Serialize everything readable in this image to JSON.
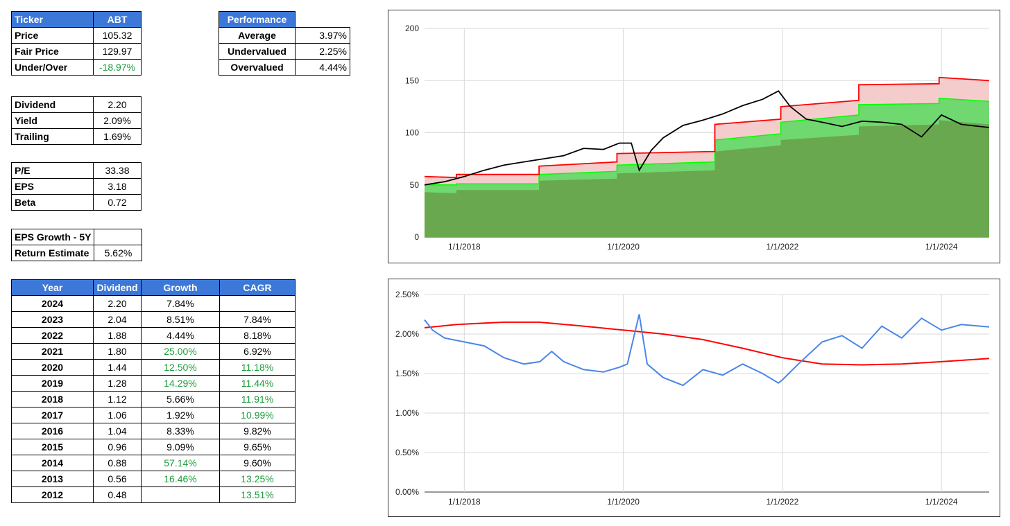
{
  "ticker_table": {
    "header_label": "Ticker",
    "header_value": "ABT",
    "rows": [
      {
        "label": "Price",
        "value": "105.32",
        "green": false
      },
      {
        "label": "Fair Price",
        "value": "129.97",
        "green": false
      },
      {
        "label": "Under/Over",
        "value": "-18.97%",
        "green": true
      }
    ]
  },
  "performance_table": {
    "header_label": "Performance",
    "rows": [
      {
        "label": "Average",
        "value": "3.97%"
      },
      {
        "label": "Undervalued",
        "value": "2.25%"
      },
      {
        "label": "Overvalued",
        "value": "4.44%"
      }
    ]
  },
  "dividend_table": {
    "rows": [
      {
        "label": "Dividend",
        "value": "2.20"
      },
      {
        "label": "Yield",
        "value": "2.09%"
      },
      {
        "label": "Trailing",
        "value": "1.69%"
      }
    ]
  },
  "valuation_table": {
    "rows": [
      {
        "label": "P/E",
        "value": "33.38"
      },
      {
        "label": "EPS",
        "value": "3.18"
      },
      {
        "label": "Beta",
        "value": "0.72"
      }
    ]
  },
  "growth_table": {
    "rows": [
      {
        "label": "EPS Growth - 5Y",
        "value": ""
      },
      {
        "label": "Return Estimate",
        "value": "5.62%"
      }
    ]
  },
  "history_table": {
    "headers": [
      "Year",
      "Dividend",
      "Growth",
      "CAGR"
    ],
    "rows": [
      {
        "year": "2024",
        "dividend": "2.20",
        "growth": "7.84%",
        "growth_green": false,
        "cagr": "",
        "cagr_green": false
      },
      {
        "year": "2023",
        "dividend": "2.04",
        "growth": "8.51%",
        "growth_green": false,
        "cagr": "7.84%",
        "cagr_green": false
      },
      {
        "year": "2022",
        "dividend": "1.88",
        "growth": "4.44%",
        "growth_green": false,
        "cagr": "8.18%",
        "cagr_green": false
      },
      {
        "year": "2021",
        "dividend": "1.80",
        "growth": "25.00%",
        "growth_green": true,
        "cagr": "6.92%",
        "cagr_green": false
      },
      {
        "year": "2020",
        "dividend": "1.44",
        "growth": "12.50%",
        "growth_green": true,
        "cagr": "11.18%",
        "cagr_green": true
      },
      {
        "year": "2019",
        "dividend": "1.28",
        "growth": "14.29%",
        "growth_green": true,
        "cagr": "11.44%",
        "cagr_green": true
      },
      {
        "year": "2018",
        "dividend": "1.12",
        "growth": "5.66%",
        "growth_green": false,
        "cagr": "11.91%",
        "cagr_green": true
      },
      {
        "year": "2017",
        "dividend": "1.06",
        "growth": "1.92%",
        "growth_green": false,
        "cagr": "10.99%",
        "cagr_green": true
      },
      {
        "year": "2016",
        "dividend": "1.04",
        "growth": "8.33%",
        "growth_green": false,
        "cagr": "9.82%",
        "cagr_green": false
      },
      {
        "year": "2015",
        "dividend": "0.96",
        "growth": "9.09%",
        "growth_green": false,
        "cagr": "9.65%",
        "cagr_green": false
      },
      {
        "year": "2014",
        "dividend": "0.88",
        "growth": "57.14%",
        "growth_green": true,
        "cagr": "9.60%",
        "cagr_green": false
      },
      {
        "year": "2013",
        "dividend": "0.56",
        "growth": "16.46%",
        "growth_green": true,
        "cagr": "13.25%",
        "cagr_green": true
      },
      {
        "year": "2012",
        "dividend": "0.48",
        "growth": "",
        "growth_green": false,
        "cagr": "13.51%",
        "cagr_green": true
      }
    ]
  },
  "colors": {
    "header_bg": "#3c78d8",
    "positive_green": "#1e9c3c",
    "price_line": "#000000",
    "over_band": "#f4cccc",
    "over_line": "#ff0000",
    "under_band": "#6fd86f",
    "under_line": "#00ff00",
    "base_area": "#6aa84f",
    "yield_line": "#4a86e8",
    "yield_avg_line": "#ff0000"
  },
  "chart_data": [
    {
      "type": "area",
      "title": "",
      "xlabel": "",
      "ylabel": "",
      "ylim": [
        0,
        200
      ],
      "yticks": [
        "0",
        "50",
        "100",
        "150",
        "200"
      ],
      "xticks": [
        {
          "label": "1/1/2018",
          "t": 2018.0
        },
        {
          "label": "1/1/2020",
          "t": 2020.0
        },
        {
          "label": "1/1/2022",
          "t": 2022.0
        },
        {
          "label": "1/1/2024",
          "t": 2024.0
        }
      ],
      "xlim": [
        2017.5,
        2024.6
      ],
      "grid": true,
      "step_series": [
        {
          "key": "over",
          "x": [
            2017.5,
            2017.9,
            2017.9,
            2018.94,
            2018.94,
            2019.92,
            2019.92,
            2021.15,
            2021.15,
            2021.98,
            2021.98,
            2022.96,
            2022.96,
            2023.97,
            2023.97,
            2024.6
          ],
          "y": [
            58,
            57,
            60,
            60,
            68,
            72,
            80,
            82,
            108,
            113,
            125,
            131,
            146,
            147,
            153,
            150
          ]
        },
        {
          "key": "under",
          "x": [
            2017.5,
            2017.9,
            2017.9,
            2018.94,
            2018.94,
            2019.92,
            2019.92,
            2021.15,
            2021.15,
            2021.98,
            2021.98,
            2022.96,
            2022.96,
            2023.97,
            2023.97,
            2024.6
          ],
          "y": [
            50,
            50,
            51,
            51,
            60,
            63,
            69,
            72,
            93,
            99,
            110,
            117,
            127,
            128,
            133,
            130
          ]
        },
        {
          "key": "base",
          "x": [
            2017.5,
            2017.9,
            2017.9,
            2018.94,
            2018.94,
            2019.92,
            2019.92,
            2021.15,
            2021.15,
            2021.98,
            2021.98,
            2022.96,
            2022.96,
            2023.97,
            2023.97,
            2024.6
          ],
          "y": [
            43,
            42,
            45,
            45,
            54,
            56,
            61,
            64,
            82,
            88,
            93,
            98,
            106,
            108,
            112,
            108
          ]
        }
      ],
      "price_series": {
        "name": "",
        "x": [
          2017.5,
          2017.75,
          2018.0,
          2018.25,
          2018.5,
          2018.75,
          2019.0,
          2019.25,
          2019.5,
          2019.75,
          2019.95,
          2020.1,
          2020.2,
          2020.35,
          2020.5,
          2020.75,
          2021.0,
          2021.25,
          2021.5,
          2021.75,
          2021.95,
          2022.1,
          2022.3,
          2022.5,
          2022.75,
          2023.0,
          2023.25,
          2023.5,
          2023.75,
          2024.0,
          2024.25,
          2024.6
        ],
        "y": [
          50,
          53,
          58,
          64,
          69,
          72,
          75,
          78,
          85,
          84,
          90,
          90,
          64,
          83,
          95,
          107,
          112,
          118,
          126,
          132,
          140,
          125,
          113,
          110,
          106,
          111,
          110,
          108,
          96,
          117,
          108,
          105
        ]
      }
    },
    {
      "type": "line",
      "title": "",
      "xlabel": "",
      "ylabel": "",
      "ylim": [
        0,
        2.5
      ],
      "yticks": [
        "0.00%",
        "0.50%",
        "1.00%",
        "1.50%",
        "2.00%",
        "2.50%"
      ],
      "xticks": [
        {
          "label": "1/1/2018",
          "t": 2018.0
        },
        {
          "label": "1/1/2020",
          "t": 2020.0
        },
        {
          "label": "1/1/2022",
          "t": 2022.0
        },
        {
          "label": "1/1/2024",
          "t": 2024.0
        }
      ],
      "xlim": [
        2017.5,
        2024.6
      ],
      "grid": true,
      "series": [
        {
          "name": "",
          "key": "yield",
          "x": [
            2017.5,
            2017.6,
            2017.75,
            2018.0,
            2018.25,
            2018.5,
            2018.75,
            2018.95,
            2019.1,
            2019.25,
            2019.5,
            2019.75,
            2019.95,
            2020.05,
            2020.2,
            2020.3,
            2020.5,
            2020.75,
            2021.0,
            2021.25,
            2021.5,
            2021.75,
            2021.95,
            2022.0,
            2022.2,
            2022.5,
            2022.75,
            2023.0,
            2023.25,
            2023.5,
            2023.75,
            2024.0,
            2024.25,
            2024.6
          ],
          "y": [
            2.18,
            2.05,
            1.95,
            1.9,
            1.85,
            1.7,
            1.62,
            1.65,
            1.78,
            1.65,
            1.55,
            1.52,
            1.58,
            1.62,
            2.25,
            1.62,
            1.45,
            1.35,
            1.55,
            1.48,
            1.62,
            1.5,
            1.38,
            1.42,
            1.62,
            1.9,
            1.98,
            1.82,
            2.1,
            1.95,
            2.2,
            2.05,
            2.12,
            2.09
          ]
        },
        {
          "name": "",
          "key": "avg",
          "x": [
            2017.5,
            2017.9,
            2018.5,
            2018.94,
            2019.5,
            2020.0,
            2020.5,
            2021.0,
            2021.5,
            2022.0,
            2022.5,
            2023.0,
            2023.5,
            2024.0,
            2024.6
          ],
          "y": [
            2.08,
            2.12,
            2.15,
            2.15,
            2.1,
            2.05,
            2.0,
            1.93,
            1.82,
            1.7,
            1.62,
            1.61,
            1.62,
            1.65,
            1.69
          ]
        }
      ]
    }
  ]
}
